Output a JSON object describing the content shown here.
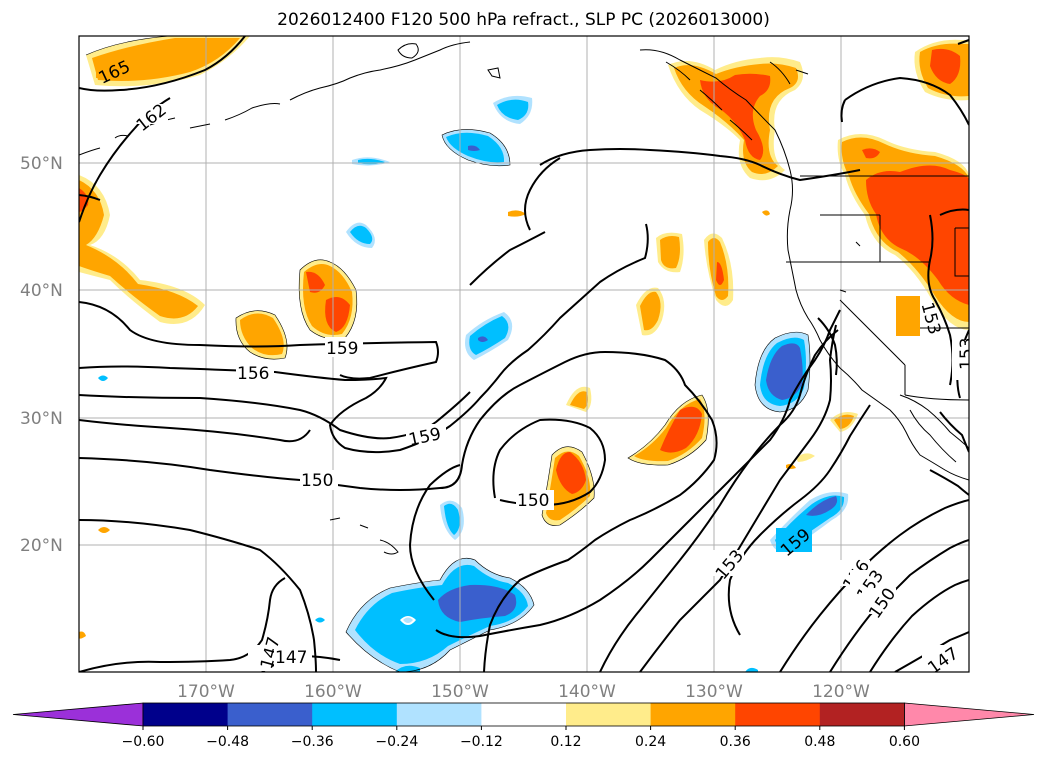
{
  "title": "2026012400 F120 500 hPa refract., SLP PC (2026013000)",
  "lat_labels": [
    "50°N",
    "40°N",
    "30°N",
    "20°N"
  ],
  "lon_labels": [
    "170°W",
    "160°W",
    "150°W",
    "140°W",
    "130°W",
    "120°W"
  ],
  "contour_labels": [
    "165",
    "162",
    "159",
    "156",
    "159",
    "150",
    "150",
    "153",
    "159",
    "156",
    "153",
    "150",
    "147",
    "147",
    "147",
    "153",
    "153"
  ],
  "colorbar": {
    "ticks": [
      "−0.60",
      "−0.48",
      "−0.36",
      "−0.24",
      "−0.12",
      "0.12",
      "0.24",
      "0.36",
      "0.48",
      "0.60"
    ],
    "colors": [
      "#9b30d9",
      "#00008b",
      "#3a5fcd",
      "#00bfff",
      "#b0e2ff",
      "#ffffff",
      "#ffec8b",
      "#ffa500",
      "#ff4500",
      "#b22222",
      "#ff88aa"
    ]
  },
  "palette": {
    "light_yellow": "#ffec8b",
    "orange": "#ffa500",
    "orange_red": "#ff4500",
    "light_blue": "#b0e2ff",
    "deep_sky_blue": "#00bfff",
    "royal_blue": "#3a5fcd"
  }
}
